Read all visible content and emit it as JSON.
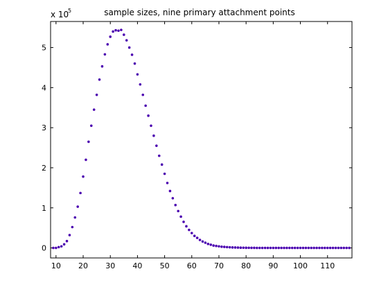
{
  "chart_data": {
    "type": "scatter",
    "title": "sample sizes, nine primary attachment points",
    "xlabel": "",
    "ylabel": "",
    "exponent_base": "x 10",
    "exponent_power": "5",
    "xlim": [
      8,
      119
    ],
    "ylim": [
      -0.25,
      5.65
    ],
    "x_ticks": [
      10,
      20,
      30,
      40,
      50,
      60,
      70,
      80,
      90,
      100,
      110
    ],
    "y_ticks": [
      0,
      1,
      2,
      3,
      4,
      5
    ],
    "grid": false,
    "legend": "none",
    "marker_color": "#4B00B0",
    "series": [
      {
        "x": [
          9,
          10,
          11,
          12,
          13,
          14,
          15,
          16,
          17,
          18,
          19,
          20,
          21,
          22,
          23,
          24,
          25,
          26,
          27,
          28,
          29,
          30,
          31,
          32,
          33,
          34,
          35,
          36,
          37,
          38,
          39,
          40,
          41,
          42,
          43,
          44,
          45,
          46,
          47,
          48,
          49,
          50,
          51,
          52,
          53,
          54,
          55,
          56,
          57,
          58,
          59,
          60,
          61,
          62,
          63,
          64,
          65,
          66,
          67,
          68,
          69,
          70,
          71,
          72,
          73,
          74,
          75,
          76,
          77,
          78,
          79,
          80,
          81,
          82,
          83,
          84,
          85,
          86,
          87,
          88,
          89,
          90,
          91,
          92,
          93,
          94,
          95,
          96,
          97,
          98,
          99,
          100,
          101,
          102,
          103,
          104,
          105,
          106,
          107,
          108,
          109,
          110,
          111,
          112,
          113,
          114,
          115,
          116,
          117,
          118
        ],
        "y": [
          0.0,
          0.0,
          0.02,
          0.04,
          0.09,
          0.17,
          0.32,
          0.52,
          0.76,
          1.03,
          1.37,
          1.78,
          2.2,
          2.65,
          3.05,
          3.45,
          3.82,
          4.2,
          4.53,
          4.83,
          5.08,
          5.27,
          5.4,
          5.43,
          5.42,
          5.44,
          5.32,
          5.18,
          5.0,
          4.82,
          4.6,
          4.33,
          4.08,
          3.82,
          3.55,
          3.3,
          3.05,
          2.8,
          2.55,
          2.3,
          2.08,
          1.85,
          1.62,
          1.42,
          1.24,
          1.07,
          0.92,
          0.78,
          0.65,
          0.54,
          0.45,
          0.37,
          0.3,
          0.25,
          0.2,
          0.16,
          0.13,
          0.1,
          0.08,
          0.06,
          0.05,
          0.04,
          0.03,
          0.025,
          0.02,
          0.015,
          0.012,
          0.01,
          0.008,
          0.006,
          0.005,
          0.004,
          0.003,
          0.002,
          0.002,
          0.001,
          0.001,
          0.001,
          0.001,
          0.0,
          0.0,
          0.0,
          0.0,
          0.0,
          0.0,
          0.0,
          0.0,
          0.0,
          0.0,
          0.0,
          0.0,
          0.0,
          0.0,
          0.0,
          0.0,
          0.0,
          0.0,
          0.0,
          0.0,
          0.0,
          0.0,
          0.0,
          0.0,
          0.0,
          0.0,
          0.0,
          0.0,
          0.0,
          0.0,
          0.0
        ]
      }
    ]
  }
}
